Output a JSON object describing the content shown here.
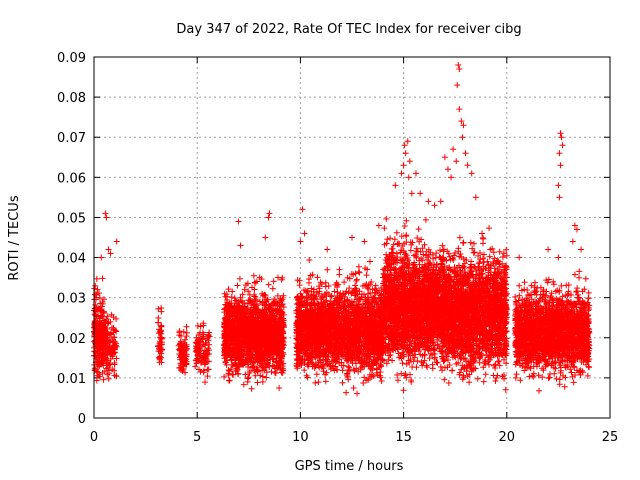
{
  "chart_data": {
    "type": "scatter",
    "title": "Day 347 of 2022, Rate Of TEC Index for receiver cibg",
    "xlabel": "GPS time / hours",
    "ylabel": "ROTI / TECUs",
    "xlim": [
      0,
      25
    ],
    "ylim": [
      0,
      0.09
    ],
    "xticks": [
      0,
      5,
      10,
      15,
      20,
      25
    ],
    "yticks": [
      0,
      0.01,
      0.02,
      0.03,
      0.04,
      0.05,
      0.06,
      0.07,
      0.08,
      0.09
    ],
    "grid": true,
    "marker": "+",
    "series_color": "#ff0000",
    "segments": [
      {
        "x": [
          0.0,
          0.5
        ],
        "y": [
          0.005,
          0.038
        ],
        "count": 260
      },
      {
        "x": [
          0.5,
          1.1
        ],
        "y": [
          0.006,
          0.03
        ],
        "count": 120
      },
      {
        "x": [
          3.1,
          3.3
        ],
        "y": [
          0.008,
          0.03
        ],
        "count": 45
      },
      {
        "x": [
          4.1,
          4.5
        ],
        "y": [
          0.007,
          0.026
        ],
        "count": 90
      },
      {
        "x": [
          4.9,
          5.6
        ],
        "y": [
          0.008,
          0.026
        ],
        "count": 110
      },
      {
        "x": [
          6.3,
          9.2
        ],
        "y": [
          0.005,
          0.038
        ],
        "count": 1700
      },
      {
        "x": [
          9.8,
          14.0
        ],
        "y": [
          0.005,
          0.04
        ],
        "count": 2300
      },
      {
        "x": [
          14.0,
          16.8
        ],
        "y": [
          0.005,
          0.052
        ],
        "count": 1900
      },
      {
        "x": [
          16.8,
          20.0
        ],
        "y": [
          0.004,
          0.05
        ],
        "count": 2200
      },
      {
        "x": [
          20.4,
          24.0
        ],
        "y": [
          0.006,
          0.038
        ],
        "count": 2000
      }
    ],
    "points": [
      {
        "x": 0.55,
        "y": 0.051
      },
      {
        "x": 0.6,
        "y": 0.05
      },
      {
        "x": 0.7,
        "y": 0.042
      },
      {
        "x": 0.8,
        "y": 0.041
      },
      {
        "x": 1.1,
        "y": 0.044
      },
      {
        "x": 0.35,
        "y": 0.04
      },
      {
        "x": 7.0,
        "y": 0.049
      },
      {
        "x": 7.1,
        "y": 0.043
      },
      {
        "x": 8.5,
        "y": 0.051
      },
      {
        "x": 8.45,
        "y": 0.05
      },
      {
        "x": 8.3,
        "y": 0.045
      },
      {
        "x": 10.1,
        "y": 0.052
      },
      {
        "x": 10.2,
        "y": 0.046
      },
      {
        "x": 10.0,
        "y": 0.044
      },
      {
        "x": 11.3,
        "y": 0.042
      },
      {
        "x": 12.5,
        "y": 0.045
      },
      {
        "x": 13.1,
        "y": 0.044
      },
      {
        "x": 13.8,
        "y": 0.048
      },
      {
        "x": 14.6,
        "y": 0.058
      },
      {
        "x": 14.9,
        "y": 0.061
      },
      {
        "x": 15.05,
        "y": 0.068
      },
      {
        "x": 15.2,
        "y": 0.069
      },
      {
        "x": 15.1,
        "y": 0.066
      },
      {
        "x": 15.3,
        "y": 0.064
      },
      {
        "x": 15.0,
        "y": 0.063
      },
      {
        "x": 15.25,
        "y": 0.06
      },
      {
        "x": 15.4,
        "y": 0.056
      },
      {
        "x": 15.6,
        "y": 0.061
      },
      {
        "x": 15.8,
        "y": 0.056
      },
      {
        "x": 16.2,
        "y": 0.054
      },
      {
        "x": 16.5,
        "y": 0.053
      },
      {
        "x": 16.8,
        "y": 0.054
      },
      {
        "x": 17.0,
        "y": 0.065
      },
      {
        "x": 17.15,
        "y": 0.062
      },
      {
        "x": 17.3,
        "y": 0.06
      },
      {
        "x": 17.4,
        "y": 0.067
      },
      {
        "x": 17.55,
        "y": 0.064
      },
      {
        "x": 17.65,
        "y": 0.088
      },
      {
        "x": 17.7,
        "y": 0.087
      },
      {
        "x": 17.6,
        "y": 0.083
      },
      {
        "x": 17.7,
        "y": 0.077
      },
      {
        "x": 17.8,
        "y": 0.074
      },
      {
        "x": 17.9,
        "y": 0.073
      },
      {
        "x": 17.85,
        "y": 0.07
      },
      {
        "x": 18.0,
        "y": 0.066
      },
      {
        "x": 18.1,
        "y": 0.063
      },
      {
        "x": 18.3,
        "y": 0.061
      },
      {
        "x": 18.5,
        "y": 0.055
      },
      {
        "x": 18.8,
        "y": 0.046
      },
      {
        "x": 19.2,
        "y": 0.042
      },
      {
        "x": 20.6,
        "y": 0.04
      },
      {
        "x": 22.0,
        "y": 0.042
      },
      {
        "x": 22.5,
        "y": 0.04
      },
      {
        "x": 22.6,
        "y": 0.071
      },
      {
        "x": 22.65,
        "y": 0.07
      },
      {
        "x": 22.7,
        "y": 0.068
      },
      {
        "x": 22.55,
        "y": 0.066
      },
      {
        "x": 22.6,
        "y": 0.063
      },
      {
        "x": 22.5,
        "y": 0.058
      },
      {
        "x": 22.55,
        "y": 0.055
      },
      {
        "x": 23.3,
        "y": 0.048
      },
      {
        "x": 23.4,
        "y": 0.047
      },
      {
        "x": 23.2,
        "y": 0.044
      },
      {
        "x": 23.6,
        "y": 0.042
      }
    ]
  }
}
